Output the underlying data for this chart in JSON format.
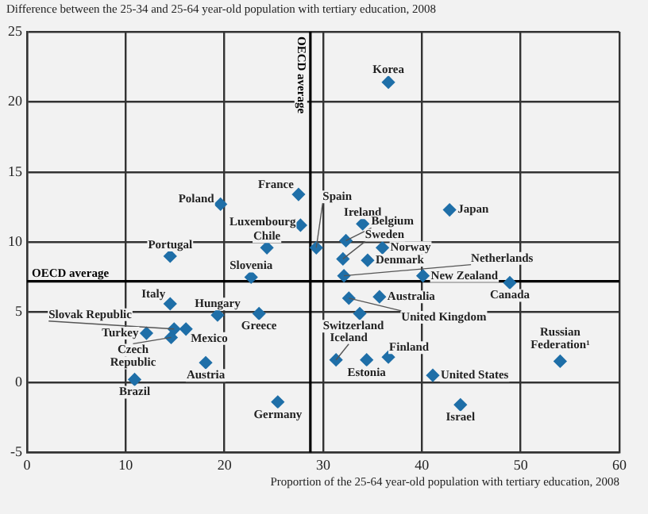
{
  "chart_data": {
    "type": "scatter",
    "ylabel": "Difference between the 25-34 and 25-64 year-old population with tertiary education, 2008",
    "xlabel": "Proportion of the 25-64 year-old population with tertiary education, 2008",
    "xlim": [
      0,
      60
    ],
    "xticks": [
      0,
      10,
      20,
      30,
      40,
      50,
      60
    ],
    "ylim": [
      -5,
      25
    ],
    "yticks": [
      -5,
      0,
      5,
      10,
      15,
      20,
      25
    ],
    "grid": true,
    "marker": "diamond",
    "series": [
      {
        "color": "#1f6fa8",
        "x": [
          36.6,
          27.5,
          19.6,
          27.7,
          24.3,
          29.3,
          14.5,
          34.0,
          42.8,
          32.3,
          32.0,
          36.0,
          34.5,
          32.1,
          40.1,
          48.9,
          35.7,
          32.6,
          33.7,
          31.3,
          34.4,
          36.6,
          41.1,
          43.9,
          54.0,
          22.7,
          14.5,
          19.3,
          23.5,
          14.9,
          16.1,
          12.1,
          14.6,
          18.1,
          10.9,
          25.4
        ],
        "values": [
          21.4,
          13.4,
          12.7,
          11.2,
          9.6,
          9.6,
          9.0,
          11.3,
          12.3,
          10.1,
          8.8,
          9.6,
          8.7,
          7.6,
          7.6,
          7.1,
          6.1,
          6.0,
          4.9,
          1.6,
          1.6,
          1.8,
          0.5,
          -1.6,
          1.5,
          7.5,
          5.6,
          4.8,
          4.9,
          3.8,
          3.8,
          3.5,
          3.2,
          1.4,
          0.2,
          -1.4
        ]
      }
    ],
    "ref_lines": [
      {
        "axis": "x",
        "value": 28.7,
        "label": "OECD average",
        "color": "#000000"
      },
      {
        "axis": "y",
        "value": 7.2,
        "label": "OECD average",
        "color": "#000000"
      }
    ],
    "annotations": [
      {
        "text": "Korea",
        "x": 36.6,
        "y": 21.4
      },
      {
        "text": "France",
        "x": 27.5,
        "y": 13.4
      },
      {
        "text": "Poland",
        "x": 19.6,
        "y": 12.7
      },
      {
        "text": "Luxembourg",
        "x": 27.7,
        "y": 11.2
      },
      {
        "text": "Chile",
        "x": 24.3,
        "y": 9.6
      },
      {
        "text": "Spain",
        "x": 29.3,
        "y": 9.6
      },
      {
        "text": "Portugal",
        "x": 14.5,
        "y": 9.0
      },
      {
        "text": "Ireland",
        "x": 34.0,
        "y": 11.3
      },
      {
        "text": "Japan",
        "x": 42.8,
        "y": 12.3
      },
      {
        "text": "Belgium",
        "x": 32.3,
        "y": 10.1
      },
      {
        "text": "Sweden",
        "x": 32.0,
        "y": 8.8
      },
      {
        "text": "Norway",
        "x": 36.0,
        "y": 9.6
      },
      {
        "text": "Denmark",
        "x": 34.5,
        "y": 8.7
      },
      {
        "text": "Netherlands",
        "x": 32.1,
        "y": 7.6
      },
      {
        "text": "New Zealand",
        "x": 40.1,
        "y": 7.6
      },
      {
        "text": "Canada",
        "x": 48.9,
        "y": 7.1
      },
      {
        "text": "Australia",
        "x": 35.7,
        "y": 6.1
      },
      {
        "text": "United Kingdom",
        "x": 32.6,
        "y": 6.0
      },
      {
        "text": "Switzerland",
        "x": 33.7,
        "y": 4.9
      },
      {
        "text": "Iceland",
        "x": 31.3,
        "y": 1.6
      },
      {
        "text": "Estonia",
        "x": 34.4,
        "y": 1.6
      },
      {
        "text": "Finland",
        "x": 36.6,
        "y": 1.8
      },
      {
        "text": "United States",
        "x": 41.1,
        "y": 0.5
      },
      {
        "text": "Israel",
        "x": 43.9,
        "y": -1.6
      },
      {
        "text": "Russian Federation¹",
        "x": 54.0,
        "y": 1.5
      },
      {
        "text": "Slovenia",
        "x": 22.7,
        "y": 7.5
      },
      {
        "text": "Italy",
        "x": 14.5,
        "y": 5.6
      },
      {
        "text": "Hungary",
        "x": 19.3,
        "y": 4.8
      },
      {
        "text": "Greece",
        "x": 23.5,
        "y": 4.9
      },
      {
        "text": "Slovak Republic",
        "x": 14.9,
        "y": 3.8
      },
      {
        "text": "Mexico",
        "x": 16.1,
        "y": 3.8
      },
      {
        "text": "Turkey",
        "x": 12.1,
        "y": 3.5
      },
      {
        "text": "Czech Republic",
        "x": 14.6,
        "y": 3.2
      },
      {
        "text": "Austria",
        "x": 18.1,
        "y": 1.4
      },
      {
        "text": "Brazil",
        "x": 10.9,
        "y": 0.2
      },
      {
        "text": "Germany",
        "x": 25.4,
        "y": -1.4
      }
    ]
  }
}
